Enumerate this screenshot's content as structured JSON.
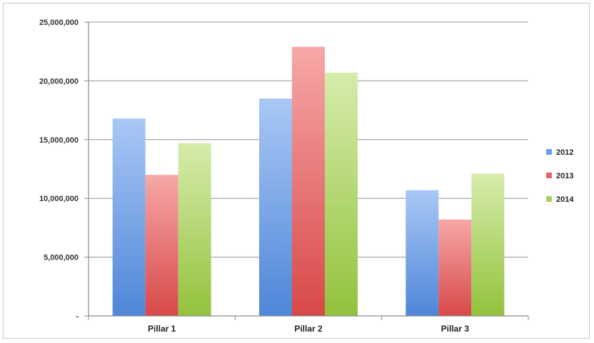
{
  "chart_data": {
    "type": "bar",
    "title": "",
    "xlabel": "",
    "ylabel": "",
    "categories": [
      "Pillar 1",
      "Pillar 2",
      "Pillar 3"
    ],
    "series": [
      {
        "name": "2012",
        "values": [
          16800000,
          18500000,
          10700000
        ],
        "color": "#6f9fe6"
      },
      {
        "name": "2013",
        "values": [
          12000000,
          22900000,
          8200000
        ],
        "color": "#e46565"
      },
      {
        "name": "2014",
        "values": [
          14700000,
          20700000,
          12100000
        ],
        "color": "#a9d156"
      }
    ],
    "ylim": [
      0,
      25000000
    ],
    "yticks": [
      0,
      5000000,
      10000000,
      15000000,
      20000000,
      25000000
    ],
    "ytick_labels": [
      "-",
      "5,000,000",
      "10,000,000",
      "15,000,000",
      "20,000,000",
      "25,000,000"
    ],
    "grid": true,
    "legend_position": "right"
  }
}
